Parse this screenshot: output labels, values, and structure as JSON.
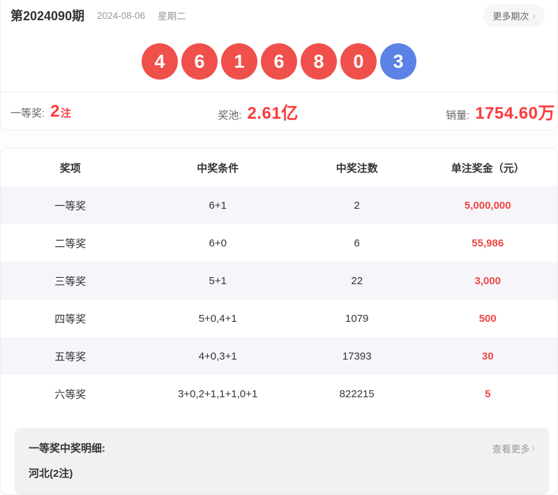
{
  "header": {
    "issue": "第2024090期",
    "date": "2024-08-06",
    "weekday": "星期二",
    "more_label": "更多期次",
    "more_arrow": "›"
  },
  "balls": [
    {
      "value": "4",
      "type": "red"
    },
    {
      "value": "6",
      "type": "red"
    },
    {
      "value": "1",
      "type": "red"
    },
    {
      "value": "6",
      "type": "red"
    },
    {
      "value": "8",
      "type": "red"
    },
    {
      "value": "0",
      "type": "red"
    },
    {
      "value": "3",
      "type": "blue"
    }
  ],
  "stats": [
    {
      "label": "一等奖:",
      "value": "2",
      "unit": "注"
    },
    {
      "label": "奖池:",
      "value": "2.61亿",
      "unit": ""
    },
    {
      "label": "销量:",
      "value": "1754.60万",
      "unit": ""
    }
  ],
  "table": {
    "headers": [
      "奖项",
      "中奖条件",
      "中奖注数",
      "单注奖金（元）"
    ],
    "rows": [
      {
        "level": "一等奖",
        "condition": "6+1",
        "count": "2",
        "prize": "5,000,000"
      },
      {
        "level": "二等奖",
        "condition": "6+0",
        "count": "6",
        "prize": "55,986"
      },
      {
        "level": "三等奖",
        "condition": "5+1",
        "count": "22",
        "prize": "3,000"
      },
      {
        "level": "四等奖",
        "condition": "5+0,4+1",
        "count": "1079",
        "prize": "500"
      },
      {
        "level": "五等奖",
        "condition": "4+0,3+1",
        "count": "17393",
        "prize": "30"
      },
      {
        "level": "六等奖",
        "condition": "3+0,2+1,1+1,0+1",
        "count": "822215",
        "prize": "5"
      }
    ]
  },
  "details": {
    "title": "一等奖中奖明细:",
    "more_label": "查看更多",
    "more_arrow": "›",
    "content": "河北(2注)"
  },
  "colors": {
    "red_ball": "#f0504b",
    "blue_ball": "#5b82e4",
    "stat_red": "#fb3b3b",
    "prize_red": "#ef4646",
    "alt_row_bg": "#f5f5fa"
  }
}
